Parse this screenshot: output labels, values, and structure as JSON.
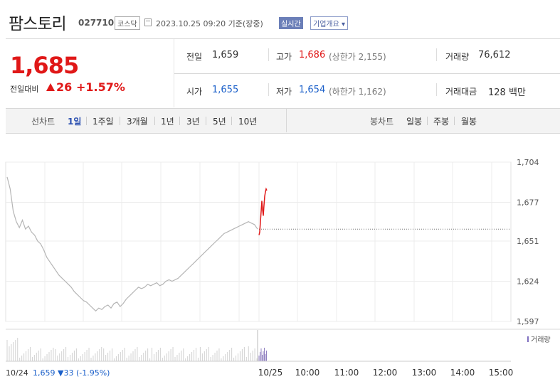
{
  "header": {
    "name": "팜스토리",
    "code": "027710",
    "market": "코스닥",
    "date": "2023.10.25 09:20  기준(장중)",
    "realtime": "실시간",
    "company": "기업개요 ▾"
  },
  "price": {
    "current": "1,685",
    "change_label": "전일대비",
    "change": "26",
    "change_pct": "+1.57%"
  },
  "summary": {
    "prev_label": "전일",
    "prev": "1,659",
    "high_label": "고가",
    "high": "1,686",
    "high_upper": "(상한가 2,155)",
    "volume_label": "거래량",
    "volume": "76,612",
    "open_label": "시가",
    "open": "1,655",
    "low_label": "저가",
    "low": "1,654",
    "low_lower": "(하한가 1,162)",
    "amount_label": "거래대금",
    "amount": "128 백만"
  },
  "tabs": {
    "line_label": "선차트",
    "line": [
      "1일",
      "1주일",
      "3개월",
      "1년",
      "3년",
      "5년",
      "10년"
    ],
    "candle_label": "봉차트",
    "candle": [
      "일봉",
      "주봉",
      "월봉"
    ]
  },
  "colors": {
    "up": "#e01818",
    "down": "#1a5fc9",
    "prev_line": "#aaaaaa"
  },
  "chart_data": {
    "type": "line",
    "y_ticks": [
      "1,704",
      "1,677",
      "1,651",
      "1,624",
      "1,597"
    ],
    "ylim": [
      1597,
      1704
    ],
    "x_ticks": [
      "10/25",
      "10:00",
      "11:00",
      "12:00",
      "13:00",
      "14:00",
      "15:00"
    ],
    "volume_label": "거래량",
    "prev_day_label": "10/24",
    "prev_day_summary": "1,659 ▼33 (-1.95%)",
    "prev_day_series": [
      1694,
      1686,
      1671,
      1664,
      1660,
      1665,
      1659,
      1661,
      1657,
      1655,
      1651,
      1649,
      1645,
      1640,
      1637,
      1634,
      1631,
      1628,
      1626,
      1624,
      1622,
      1620,
      1617,
      1615,
      1613,
      1611,
      1610,
      1608,
      1606,
      1604,
      1606,
      1605,
      1607,
      1608,
      1606,
      1609,
      1610,
      1607,
      1609,
      1612,
      1614,
      1616,
      1618,
      1620,
      1619,
      1620,
      1622,
      1621,
      1622,
      1623,
      1621,
      1622,
      1624,
      1625,
      1624,
      1625,
      1626,
      1628,
      1630,
      1632,
      1634,
      1636,
      1638,
      1640,
      1642,
      1644,
      1646,
      1648,
      1650,
      1652,
      1654,
      1656,
      1657,
      1658,
      1659,
      1660,
      1661,
      1662,
      1663,
      1664,
      1663,
      1662,
      1659
    ],
    "today_series": [
      1655,
      1657,
      1664,
      1671,
      1678,
      1672,
      1668,
      1675,
      1681,
      1684,
      1686,
      1685
    ]
  }
}
